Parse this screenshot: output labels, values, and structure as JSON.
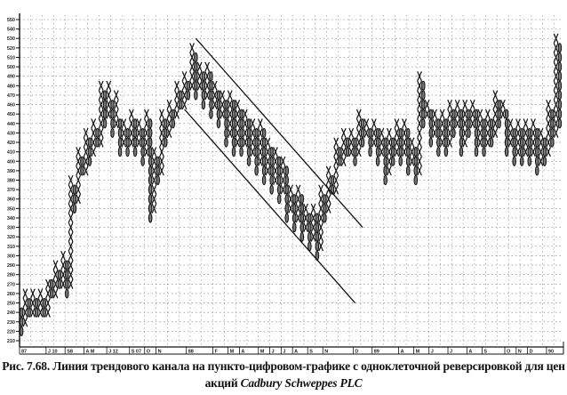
{
  "chart_data": {
    "type": "point-and-figure",
    "box_size": 10,
    "reversal_boxes": 1,
    "ylim": [
      210,
      550
    ],
    "y_ticks": [
      210,
      220,
      230,
      240,
      250,
      260,
      270,
      280,
      290,
      300,
      310,
      320,
      330,
      340,
      350,
      360,
      370,
      380,
      390,
      400,
      410,
      420,
      430,
      440,
      450,
      460,
      470,
      480,
      490,
      500,
      510,
      520,
      530,
      540,
      550
    ],
    "grid": true,
    "x_tick_labels": [
      {
        "col": 0,
        "label": "87"
      },
      {
        "col": 7,
        "label": "J 10"
      },
      {
        "col": 12,
        "label": "S8"
      },
      {
        "col": 17,
        "label": "A M"
      },
      {
        "col": 23,
        "label": "J 12"
      },
      {
        "col": 29,
        "label": "S 07"
      },
      {
        "col": 33,
        "label": "O"
      },
      {
        "col": 36,
        "label": "N"
      },
      {
        "col": 44,
        "label": "88"
      },
      {
        "col": 51,
        "label": "F"
      },
      {
        "col": 55,
        "label": "M"
      },
      {
        "col": 58,
        "label": "A"
      },
      {
        "col": 63,
        "label": "M"
      },
      {
        "col": 66,
        "label": "J"
      },
      {
        "col": 69,
        "label": "J"
      },
      {
        "col": 72,
        "label": "A"
      },
      {
        "col": 76,
        "label": "S"
      },
      {
        "col": 80,
        "label": "N"
      },
      {
        "col": 88,
        "label": "D"
      },
      {
        "col": 93,
        "label": "89"
      },
      {
        "col": 100,
        "label": "A"
      },
      {
        "col": 104,
        "label": "M"
      },
      {
        "col": 108,
        "label": "J"
      },
      {
        "col": 113,
        "label": "J"
      },
      {
        "col": 118,
        "label": "A"
      },
      {
        "col": 122,
        "label": "S"
      },
      {
        "col": 128,
        "label": "O"
      },
      {
        "col": 131,
        "label": "N"
      },
      {
        "col": 134,
        "label": "D"
      },
      {
        "col": 139,
        "label": "90"
      }
    ],
    "columns": [
      [
        "O",
        220,
        240
      ],
      [
        "X",
        230,
        260
      ],
      [
        "O",
        240,
        250
      ],
      [
        "X",
        240,
        260
      ],
      [
        "O",
        240,
        250
      ],
      [
        "X",
        240,
        260
      ],
      [
        "O",
        240,
        250
      ],
      [
        "X",
        240,
        270
      ],
      [
        "O",
        260,
        270
      ],
      [
        "X",
        260,
        290
      ],
      [
        "O",
        270,
        280
      ],
      [
        "X",
        270,
        300
      ],
      [
        "O",
        260,
        290
      ],
      [
        "X",
        270,
        380
      ],
      [
        "O",
        350,
        370
      ],
      [
        "X",
        360,
        410
      ],
      [
        "O",
        390,
        400
      ],
      [
        "X",
        390,
        430
      ],
      [
        "O",
        400,
        420
      ],
      [
        "X",
        410,
        440
      ],
      [
        "O",
        420,
        430
      ],
      [
        "X",
        420,
        480
      ],
      [
        "O",
        440,
        470
      ],
      [
        "X",
        450,
        480
      ],
      [
        "O",
        430,
        460
      ],
      [
        "X",
        440,
        470
      ],
      [
        "O",
        410,
        440
      ],
      [
        "X",
        420,
        440
      ],
      [
        "O",
        410,
        430
      ],
      [
        "X",
        420,
        450
      ],
      [
        "O",
        410,
        440
      ],
      [
        "X",
        420,
        440
      ],
      [
        "O",
        400,
        430
      ],
      [
        "X",
        410,
        450
      ],
      [
        "O",
        340,
        440
      ],
      [
        "X",
        350,
        410
      ],
      [
        "O",
        380,
        400
      ],
      [
        "X",
        390,
        450
      ],
      [
        "O",
        420,
        440
      ],
      [
        "X",
        430,
        460
      ],
      [
        "O",
        440,
        450
      ],
      [
        "X",
        450,
        480
      ],
      [
        "O",
        460,
        470
      ],
      [
        "X",
        460,
        490
      ],
      [
        "O",
        470,
        480
      ],
      [
        "X",
        480,
        520
      ],
      [
        "O",
        470,
        510
      ],
      [
        "X",
        480,
        500
      ],
      [
        "O",
        460,
        490
      ],
      [
        "X",
        470,
        500
      ],
      [
        "O",
        450,
        490
      ],
      [
        "X",
        460,
        480
      ],
      [
        "O",
        440,
        470
      ],
      [
        "X",
        450,
        470
      ],
      [
        "O",
        420,
        460
      ],
      [
        "X",
        430,
        470
      ],
      [
        "O",
        410,
        460
      ],
      [
        "X",
        420,
        460
      ],
      [
        "O",
        410,
        450
      ],
      [
        "X",
        420,
        450
      ],
      [
        "O",
        400,
        440
      ],
      [
        "X",
        410,
        440
      ],
      [
        "O",
        390,
        430
      ],
      [
        "X",
        400,
        440
      ],
      [
        "O",
        380,
        430
      ],
      [
        "X",
        390,
        420
      ],
      [
        "O",
        370,
        410
      ],
      [
        "X",
        380,
        410
      ],
      [
        "O",
        360,
        400
      ],
      [
        "X",
        370,
        400
      ],
      [
        "O",
        340,
        390
      ],
      [
        "X",
        350,
        370
      ],
      [
        "O",
        330,
        360
      ],
      [
        "X",
        340,
        370
      ],
      [
        "O",
        320,
        360
      ],
      [
        "X",
        330,
        350
      ],
      [
        "O",
        310,
        340
      ],
      [
        "X",
        320,
        350
      ],
      [
        "O",
        300,
        340
      ],
      [
        "X",
        310,
        370
      ],
      [
        "O",
        340,
        360
      ],
      [
        "X",
        350,
        390
      ],
      [
        "O",
        370,
        380
      ],
      [
        "X",
        370,
        420
      ],
      [
        "O",
        400,
        410
      ],
      [
        "X",
        400,
        430
      ],
      [
        "O",
        410,
        420
      ],
      [
        "X",
        410,
        430
      ],
      [
        "O",
        400,
        420
      ],
      [
        "X",
        410,
        450
      ],
      [
        "O",
        420,
        440
      ],
      [
        "X",
        430,
        440
      ],
      [
        "O",
        410,
        430
      ],
      [
        "X",
        420,
        440
      ],
      [
        "O",
        400,
        430
      ],
      [
        "X",
        410,
        430
      ],
      [
        "O",
        380,
        420
      ],
      [
        "X",
        390,
        430
      ],
      [
        "O",
        400,
        420
      ],
      [
        "X",
        410,
        440
      ],
      [
        "O",
        400,
        430
      ],
      [
        "X",
        410,
        440
      ],
      [
        "O",
        390,
        430
      ],
      [
        "X",
        400,
        420
      ],
      [
        "O",
        380,
        410
      ],
      [
        "X",
        390,
        490
      ],
      [
        "O",
        440,
        480
      ],
      [
        "X",
        450,
        460
      ],
      [
        "O",
        420,
        450
      ],
      [
        "X",
        430,
        450
      ],
      [
        "O",
        410,
        440
      ],
      [
        "X",
        420,
        450
      ],
      [
        "O",
        410,
        440
      ],
      [
        "X",
        420,
        460
      ],
      [
        "O",
        430,
        450
      ],
      [
        "X",
        440,
        460
      ],
      [
        "O",
        410,
        450
      ],
      [
        "X",
        420,
        460
      ],
      [
        "O",
        430,
        450
      ],
      [
        "X",
        440,
        460
      ],
      [
        "O",
        410,
        450
      ],
      [
        "X",
        420,
        450
      ],
      [
        "O",
        410,
        440
      ],
      [
        "X",
        420,
        450
      ],
      [
        "O",
        420,
        440
      ],
      [
        "X",
        430,
        470
      ],
      [
        "O",
        440,
        460
      ],
      [
        "X",
        450,
        460
      ],
      [
        "O",
        410,
        450
      ],
      [
        "X",
        420,
        440
      ],
      [
        "O",
        400,
        430
      ],
      [
        "X",
        410,
        440
      ],
      [
        "O",
        400,
        430
      ],
      [
        "X",
        410,
        440
      ],
      [
        "O",
        400,
        430
      ],
      [
        "X",
        410,
        440
      ],
      [
        "O",
        390,
        430
      ],
      [
        "X",
        400,
        430
      ],
      [
        "O",
        400,
        420
      ],
      [
        "X",
        410,
        460
      ],
      [
        "O",
        420,
        450
      ],
      [
        "X",
        430,
        530
      ],
      [
        "O",
        440,
        520
      ]
    ],
    "trend_lines": [
      {
        "from": [
          46,
          530
        ],
        "to": [
          90,
          330
        ]
      },
      {
        "from": [
          43,
          455
        ],
        "to": [
          88,
          250
        ]
      }
    ]
  },
  "caption": {
    "line1": "Рис. 7.68. Линия трендового канала на пункто-цифровом-графике с одноклеточной реверсировкой для цен",
    "line2_prefix": "акций ",
    "line2_italic": "Cadbury Schweppes PLC"
  }
}
